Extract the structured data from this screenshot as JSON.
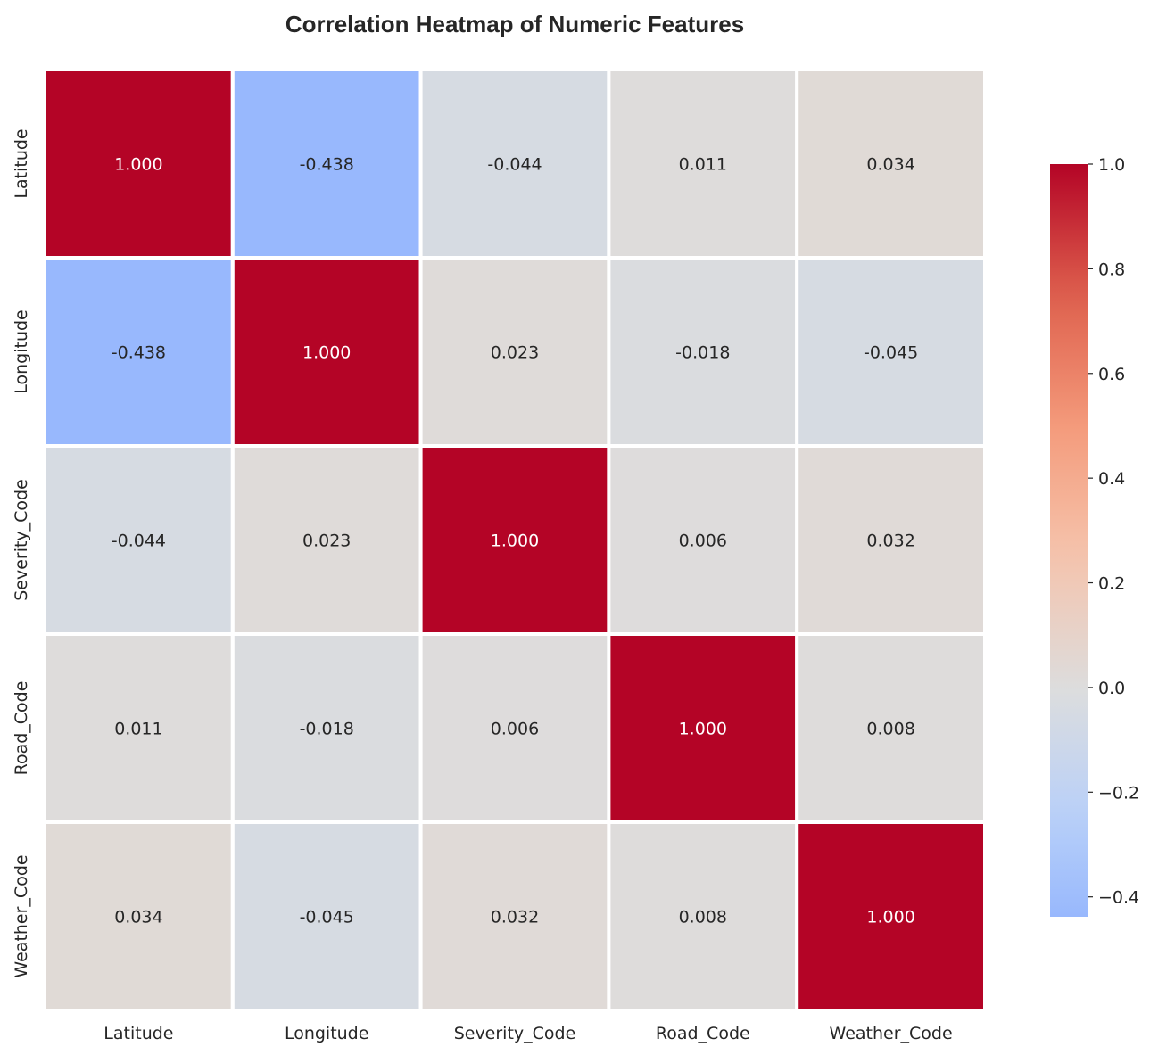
{
  "chart_data": {
    "type": "heatmap",
    "title": "Correlation Heatmap of Numeric Features",
    "x_labels": [
      "Latitude",
      "Longitude",
      "Severity_Code",
      "Road_Code",
      "Weather_Code"
    ],
    "y_labels": [
      "Latitude",
      "Longitude",
      "Severity_Code",
      "Road_Code",
      "Weather_Code"
    ],
    "values": [
      [
        1.0,
        -0.438,
        -0.044,
        0.011,
        0.034
      ],
      [
        -0.438,
        1.0,
        0.023,
        -0.018,
        -0.045
      ],
      [
        -0.044,
        0.023,
        1.0,
        0.006,
        0.032
      ],
      [
        0.011,
        -0.018,
        0.006,
        1.0,
        0.008
      ],
      [
        0.034,
        -0.045,
        0.032,
        0.008,
        1.0
      ]
    ],
    "value_format": "3 decimals",
    "colormap": "coolwarm",
    "center": 0,
    "color_range": [
      -0.438,
      1.0
    ],
    "colorbar": {
      "ticks": [
        1.0,
        0.8,
        0.6,
        0.4,
        0.2,
        0.0,
        -0.2,
        -0.4
      ],
      "tick_labels": [
        "1.0",
        "0.8",
        "0.6",
        "0.4",
        "0.2",
        "0.0",
        "−0.2",
        "−0.4"
      ]
    },
    "xlabel": "",
    "ylabel": ""
  }
}
